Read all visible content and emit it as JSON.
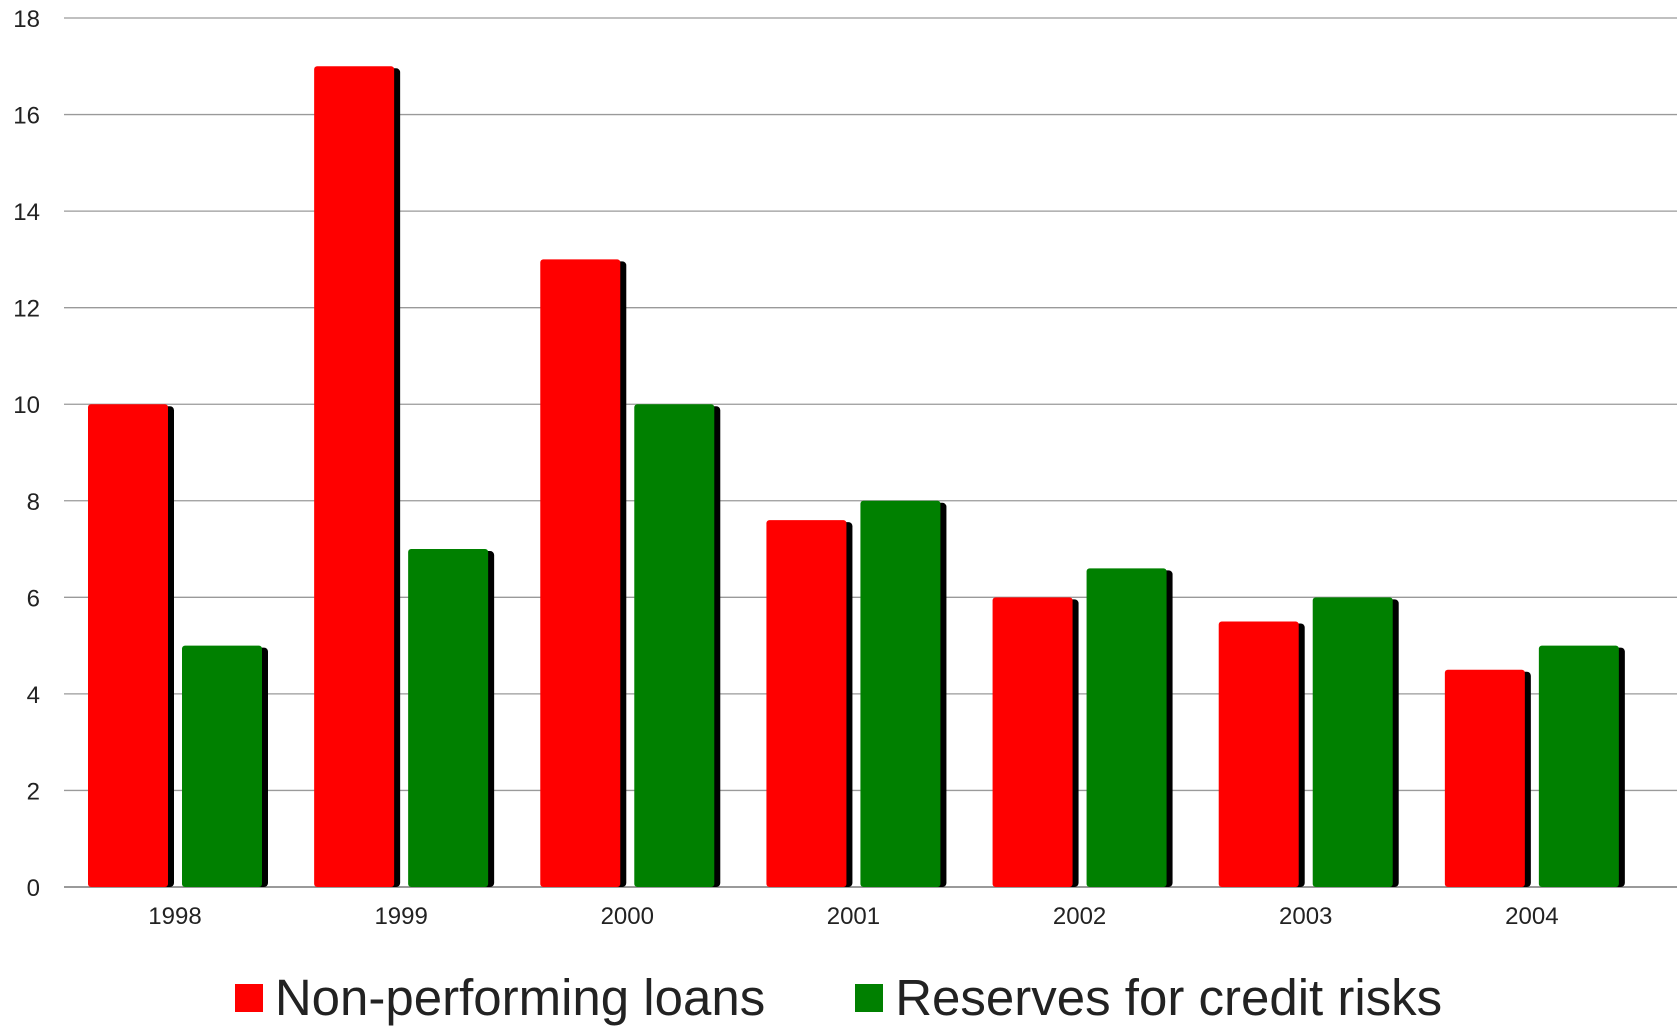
{
  "chart_data": {
    "type": "bar",
    "title": "",
    "xlabel": "",
    "ylabel": "",
    "ylim": [
      0,
      18
    ],
    "yticks": [
      0,
      2,
      4,
      6,
      8,
      10,
      12,
      14,
      16,
      18
    ],
    "grid": true,
    "legend_position": "bottom",
    "categories": [
      "1998",
      "1999",
      "2000",
      "2001",
      "2002",
      "2003",
      "2004"
    ],
    "series": [
      {
        "name": "Non-performing loans",
        "color": "#ff0000",
        "values": [
          10,
          17,
          13,
          7.6,
          6,
          5.5,
          4.5
        ]
      },
      {
        "name": "Reserves for credit risks",
        "color": "#008000",
        "values": [
          5,
          7,
          10,
          8,
          6.6,
          6,
          5
        ]
      }
    ]
  }
}
